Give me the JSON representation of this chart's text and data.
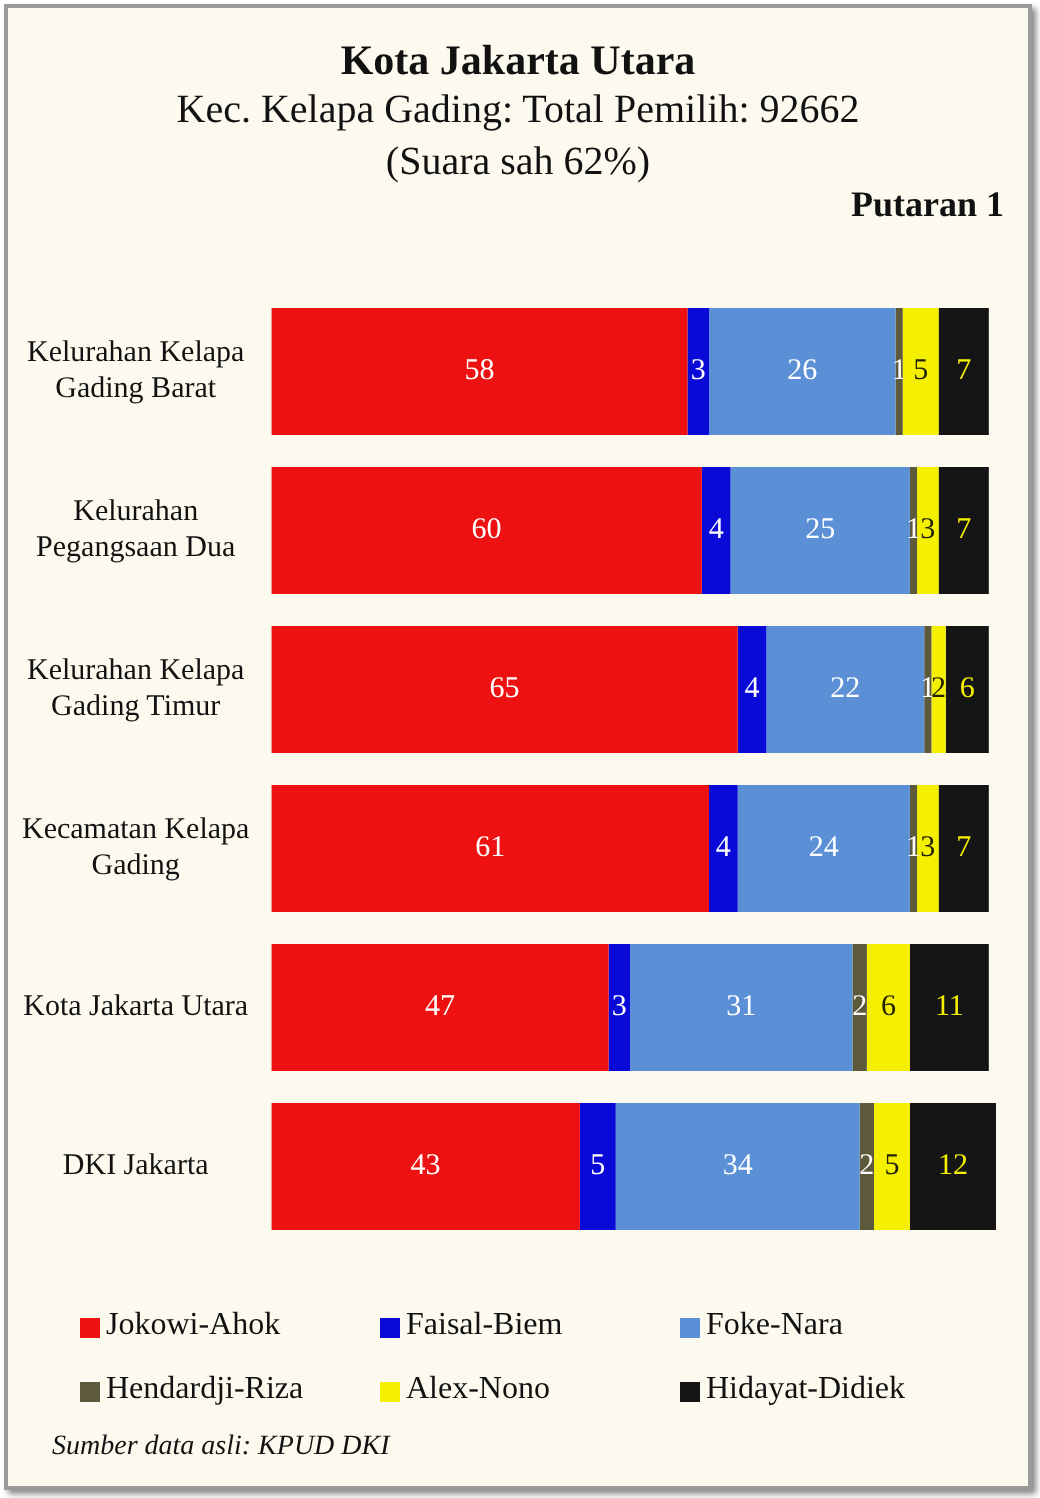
{
  "chart_data": {
    "type": "bar",
    "orientation": "horizontal",
    "stacked": true,
    "data_labels": true,
    "legend": "bottom",
    "title": "Kota Jakarta Utara",
    "subtitle": "Kec. Kelapa Gading: Total Pemilih: 92662",
    "annotations": [
      "(Suara sah 62%)",
      "Putaran 1",
      "Sumber data asli: KPUD DKI"
    ],
    "categories": [
      "Kelurahan Kelapa Gading Barat",
      "Kelurahan Pegangsaan Dua",
      "Kelurahan Kelapa Gading Timur",
      "Kecamatan Kelapa Gading",
      "Kota Jakarta Utara",
      "DKI Jakarta"
    ],
    "series": [
      {
        "name": "Jokowi-Ahok",
        "color": "#ee1111",
        "values": [
          58,
          60,
          65,
          61,
          47,
          43
        ]
      },
      {
        "name": "Faisal-Biem",
        "color": "#0a0ad8",
        "values": [
          3,
          4,
          4,
          4,
          3,
          5
        ]
      },
      {
        "name": "Foke-Nara",
        "color": "#5b8fd6",
        "values": [
          26,
          25,
          22,
          24,
          31,
          34
        ]
      },
      {
        "name": "Hendardji-Riza",
        "color": "#5c5a3a",
        "values": [
          1,
          1,
          1,
          1,
          2,
          2
        ]
      },
      {
        "name": "Alex-Nono",
        "color": "#f5f000",
        "values": [
          5,
          3,
          2,
          3,
          6,
          5
        ]
      },
      {
        "name": "Hidayat-Didiek",
        "color": "#151515",
        "values": [
          7,
          7,
          6,
          7,
          11,
          12
        ]
      }
    ]
  }
}
